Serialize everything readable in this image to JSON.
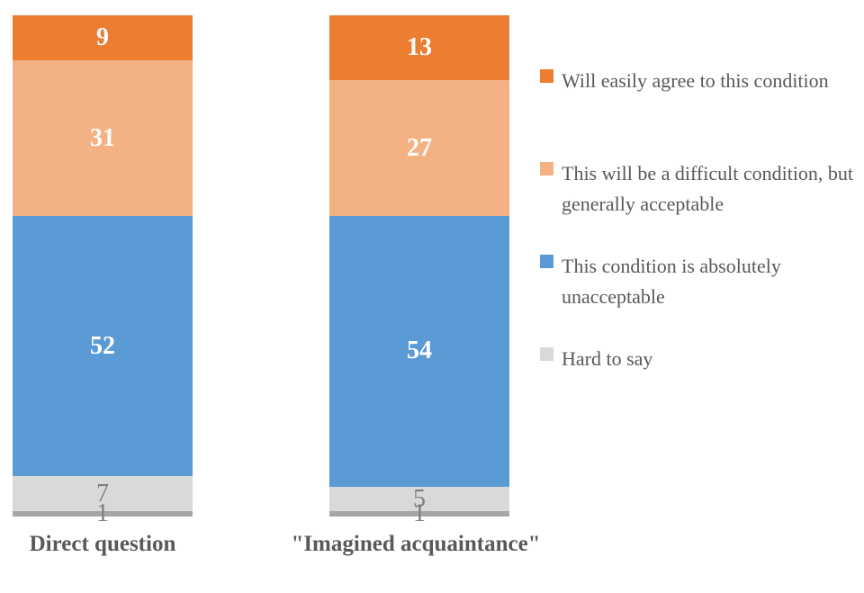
{
  "chart_data": {
    "type": "bar",
    "subtype": "stacked-column-100",
    "title": "",
    "categories": [
      "Direct question",
      "\"Imagined acquaintance\""
    ],
    "series": [
      {
        "name": "Will easily agree to this condition",
        "values": [
          9,
          13
        ],
        "color": "#ED7D31",
        "label_color": "#FFFFFF",
        "label_bold": true,
        "in_legend": true
      },
      {
        "name": "This will be a difficult condition, but generally acceptable",
        "values": [
          31,
          27
        ],
        "color": "#F4B183",
        "label_color": "#FFFFFF",
        "label_bold": true,
        "in_legend": true
      },
      {
        "name": "This condition is absolutely unacceptable",
        "values": [
          52,
          54
        ],
        "color": "#5B9BD5",
        "label_color": "#FFFFFF",
        "label_bold": true,
        "in_legend": true
      },
      {
        "name": "Hard to say",
        "values": [
          7,
          5
        ],
        "color": "#D9D9D9",
        "label_color": "#7F7F7F",
        "label_bold": false,
        "in_legend": true
      },
      {
        "name": "",
        "values": [
          1,
          1
        ],
        "color": "#A6A6A6",
        "label_color": "#7F7F7F",
        "label_bold": false,
        "in_legend": false
      }
    ],
    "stack_order": "top-to-bottom",
    "total_per_category": 100,
    "axis": {
      "max": 100,
      "gridlines": false,
      "axis_lines": false
    },
    "legend": {
      "position": "right"
    }
  },
  "colors": {
    "background": "#FFFFFF",
    "category_label_text": "#595959",
    "legend_text": "#595959"
  }
}
